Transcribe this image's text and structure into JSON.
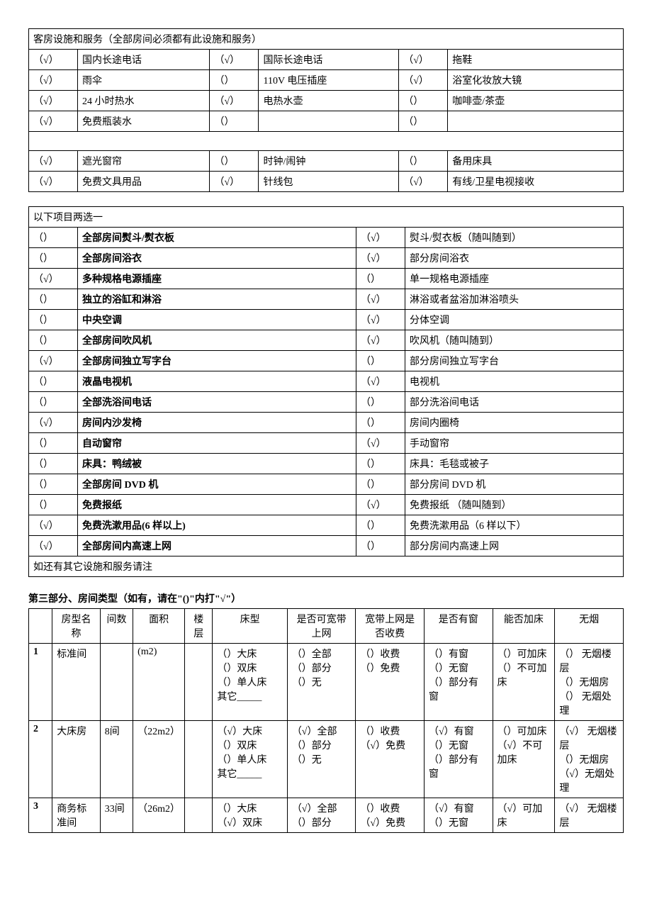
{
  "table1": {
    "header": "客房设施和服务（全部房间必须都有此设施和服务）",
    "rows": [
      [
        {
          "c": "（√）",
          "l": "国内长途电话"
        },
        {
          "c": "（√）",
          "l": "国际长途电话"
        },
        {
          "c": "（√）",
          "l": "拖鞋"
        }
      ],
      [
        {
          "c": "（√）",
          "l": "雨伞"
        },
        {
          "c": "（）",
          "l": "110V 电压插座"
        },
        {
          "c": "（√）",
          "l": "浴室化妆放大镜"
        }
      ],
      [
        {
          "c": "（√）",
          "l": "24 小时热水"
        },
        {
          "c": "（√）",
          "l": "电热水壶"
        },
        {
          "c": "（）",
          "l": "咖啡壶/茶壶"
        }
      ],
      [
        {
          "c": "（√）",
          "l": "免费瓶装水"
        },
        {
          "c": "（）",
          "l": ""
        },
        {
          "c": "（）",
          "l": ""
        }
      ]
    ],
    "rows2": [
      [
        {
          "c": "（√）",
          "l": "遮光窗帘"
        },
        {
          "c": "（）",
          "l": "时钟/闹钟"
        },
        {
          "c": "（）",
          "l": "备用床具"
        }
      ],
      [
        {
          "c": "（√）",
          "l": "免费文具用品"
        },
        {
          "c": "（√）",
          "l": "针线包"
        },
        {
          "c": "（√）",
          "l": "有线/卫星电视接收"
        }
      ]
    ]
  },
  "table2": {
    "header": "以下项目两选一",
    "rows": [
      [
        {
          "c": "（）",
          "l": "全部房间熨斗/熨衣板"
        },
        {
          "c": "（√）",
          "l": "熨斗/熨衣板（随叫随到）"
        }
      ],
      [
        {
          "c": "（）",
          "l": "全部房间浴衣"
        },
        {
          "c": "（√）",
          "l": "部分房间浴衣"
        }
      ],
      [
        {
          "c": "（√）",
          "l": "多种规格电源插座"
        },
        {
          "c": "（）",
          "l": "单一规格电源插座"
        }
      ],
      [
        {
          "c": "（）",
          "l": "独立的浴缸和淋浴"
        },
        {
          "c": "（√）",
          "l": "淋浴或者盆浴加淋浴喷头"
        }
      ],
      [
        {
          "c": "（）",
          "l": "中央空调"
        },
        {
          "c": "（√）",
          "l": "分体空调"
        }
      ],
      [
        {
          "c": "（）",
          "l": "全部房间吹风机"
        },
        {
          "c": "（√）",
          "l": "吹风机（随叫随到）"
        }
      ],
      [
        {
          "c": "（√）",
          "l": "全部房间独立写字台"
        },
        {
          "c": "（）",
          "l": "部分房间独立写字台"
        }
      ],
      [
        {
          "c": "（）",
          "l": "液晶电视机"
        },
        {
          "c": "（√）",
          "l": "电视机"
        }
      ],
      [
        {
          "c": "（）",
          "l": "全部洗浴间电话"
        },
        {
          "c": "（）",
          "l": "部分洗浴间电话"
        }
      ],
      [
        {
          "c": "（√）",
          "l": "房间内沙发椅"
        },
        {
          "c": "（）",
          "l": "房间内圈椅"
        }
      ],
      [
        {
          "c": "（）",
          "l": "自动窗帘"
        },
        {
          "c": "（√）",
          "l": "手动窗帘"
        }
      ],
      [
        {
          "c": "（）",
          "l": "床具：鸭绒被"
        },
        {
          "c": "（）",
          "l": "床具：毛毯或被子"
        }
      ],
      [
        {
          "c": "（）",
          "l": "全部房间 DVD 机"
        },
        {
          "c": "（）",
          "l": "部分房间 DVD 机"
        }
      ],
      [
        {
          "c": "（）",
          "l": "免费报纸"
        },
        {
          "c": "（√）",
          "l": "免费报纸  （随叫随到）"
        }
      ],
      [
        {
          "c": "（√）",
          "l": "免费洗漱用品(6 样以上)"
        },
        {
          "c": "（）",
          "l": "免费洗漱用品（6 样以下）"
        }
      ],
      [
        {
          "c": "（√）",
          "l": "全部房间内高速上网"
        },
        {
          "c": "（）",
          "l": "部分房间内高速上网"
        }
      ]
    ],
    "footer": "如还有其它设施和服务请注"
  },
  "section3": {
    "title": "第三部分、房间类型（如有，请在\"()\"内打\"√\"）",
    "headers": {
      "idx": "",
      "name": "房型名称",
      "count": "间数",
      "area": "面积",
      "floor": "楼层",
      "bed": "床型",
      "bb": "是否可宽带上网",
      "bbfee": "宽带上网是否收费",
      "window": "是否有窗",
      "extra": "能否加床",
      "smoke": "无烟"
    },
    "rows": [
      {
        "idx": "1",
        "name": "标准间",
        "count": "",
        "area": "(m2)",
        "floor": "",
        "bed": "（）大床\n（）双床\n（）单人床\n其它_____",
        "bb": "（）全部\n（）部分\n（）无",
        "bbfee": "（）收费\n（）免费",
        "window": "（）有窗\n（）无窗\n（）部分有窗",
        "extra": "（）可加床\n（）不可加床",
        "smoke": "（） 无烟楼层\n（）无烟房\n（） 无烟处理"
      },
      {
        "idx": "2",
        "name": "大床房",
        "count": "8间",
        "area": "（22m2）",
        "floor": "",
        "bed": "（√）大床\n（）双床\n（）单人床\n其它_____",
        "bb": "（√）全部\n（）部分\n（）无",
        "bbfee": "（）收费\n（√）免费",
        "window": "（√）有窗\n（）无窗\n（）部分有窗",
        "extra": "（）可加床\n（√）不可加床",
        "smoke": "（√） 无烟楼层\n（）无烟房\n（√）无烟处理"
      },
      {
        "idx": "3",
        "name": "商务标准间",
        "count": "33间",
        "area": "（26m2）",
        "floor": "",
        "bed": "（）大床\n（√）双床",
        "bb": "（√）全部\n（）部分",
        "bbfee": "（）收费\n（√）免费",
        "window": "（√）有窗\n（）无窗",
        "extra": "（√）可加床",
        "smoke": "（√） 无烟楼层"
      }
    ]
  }
}
